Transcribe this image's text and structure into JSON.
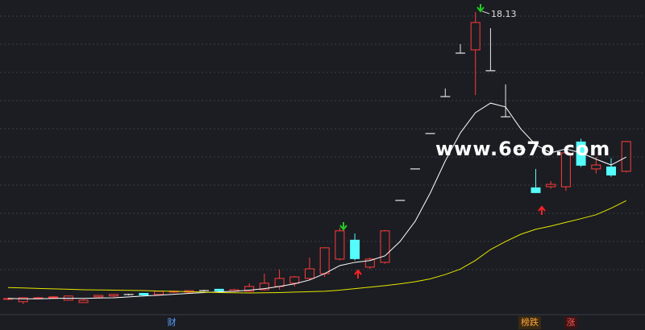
{
  "chart_data": {
    "type": "candlestick",
    "ylim": [
      4.2,
      18.5
    ],
    "up_color": "#ff3b3b",
    "down_color": "#54fcfc",
    "flat_color": "#e8e8e8",
    "open": [
      4.91,
      4.8,
      4.96,
      4.98,
      4.87,
      4.76,
      5.02,
      5.06,
      5.13,
      5.2,
      5.13,
      5.24,
      5.24,
      5.31,
      5.39,
      5.28,
      5.28,
      5.35,
      5.5,
      5.65,
      5.87,
      6.09,
      6.76,
      7.65,
      6.39,
      6.61,
      9.46,
      10.91,
      12.54,
      14.24,
      16.24,
      16.39,
      15.43,
      13.31,
      11.8,
      10.06,
      10.09,
      10.09,
      12.17,
      10.91,
      11.02,
      10.8
    ],
    "high": [
      4.98,
      4.98,
      5.02,
      5.06,
      5.09,
      4.91,
      5.09,
      5.13,
      5.16,
      5.2,
      5.28,
      5.31,
      5.31,
      5.35,
      5.39,
      5.39,
      5.65,
      6.09,
      6.28,
      5.98,
      6.83,
      7.3,
      8.2,
      7.94,
      6.83,
      8.1,
      9.46,
      10.91,
      12.54,
      14.61,
      16.65,
      18.13,
      17.39,
      14.8,
      11.9,
      10.91,
      10.35,
      11.7,
      12.3,
      11.46,
      11.4,
      12.2
    ],
    "low": [
      4.87,
      4.69,
      4.94,
      4.94,
      4.87,
      4.76,
      4.98,
      5.02,
      5.09,
      5.06,
      5.09,
      5.2,
      5.2,
      5.28,
      5.24,
      5.24,
      5.24,
      5.31,
      5.35,
      5.5,
      5.8,
      5.94,
      6.7,
      6.7,
      6.3,
      6.55,
      9.46,
      10.91,
      12.54,
      14.24,
      16.24,
      14.31,
      15.43,
      13.31,
      11.8,
      9.8,
      10.0,
      9.9,
      11.0,
      10.7,
      10.55,
      10.75
    ],
    "close": [
      4.94,
      4.98,
      4.98,
      5.02,
      5.06,
      4.87,
      5.09,
      5.13,
      5.13,
      5.09,
      5.28,
      5.28,
      5.31,
      5.31,
      5.28,
      5.35,
      5.5,
      5.65,
      5.87,
      5.94,
      6.31,
      7.28,
      8.06,
      6.76,
      6.76,
      8.06,
      9.46,
      10.91,
      12.54,
      14.24,
      16.24,
      17.65,
      15.43,
      13.31,
      11.8,
      9.8,
      10.2,
      11.65,
      11.06,
      11.09,
      10.61,
      12.17
    ],
    "lines": [
      {
        "color": "#ffffff",
        "values": [
          4.95,
          4.93,
          4.93,
          4.95,
          4.96,
          4.95,
          4.97,
          4.98,
          5.02,
          5.06,
          5.1,
          5.14,
          5.18,
          5.22,
          5.25,
          5.28,
          5.33,
          5.4,
          5.5,
          5.62,
          5.8,
          6.09,
          6.46,
          6.61,
          6.69,
          6.91,
          7.57,
          8.5,
          9.8,
          11.28,
          12.57,
          13.5,
          13.94,
          13.76,
          12.76,
          12.02,
          11.65,
          11.83,
          11.65,
          11.36,
          11.09,
          11.46
        ]
      },
      {
        "color": "#e6e600",
        "values": [
          5.45,
          5.43,
          5.41,
          5.39,
          5.37,
          5.35,
          5.34,
          5.33,
          5.32,
          5.31,
          5.29,
          5.28,
          5.26,
          5.24,
          5.22,
          5.21,
          5.2,
          5.21,
          5.22,
          5.24,
          5.26,
          5.28,
          5.33,
          5.4,
          5.47,
          5.54,
          5.62,
          5.72,
          5.85,
          6.05,
          6.3,
          6.7,
          7.2,
          7.57,
          7.9,
          8.13,
          8.28,
          8.45,
          8.62,
          8.8,
          9.1,
          9.45
        ]
      }
    ],
    "watermark": "www.6o7o.com",
    "tags": [
      "财",
      "榜跌",
      "涨"
    ]
  }
}
